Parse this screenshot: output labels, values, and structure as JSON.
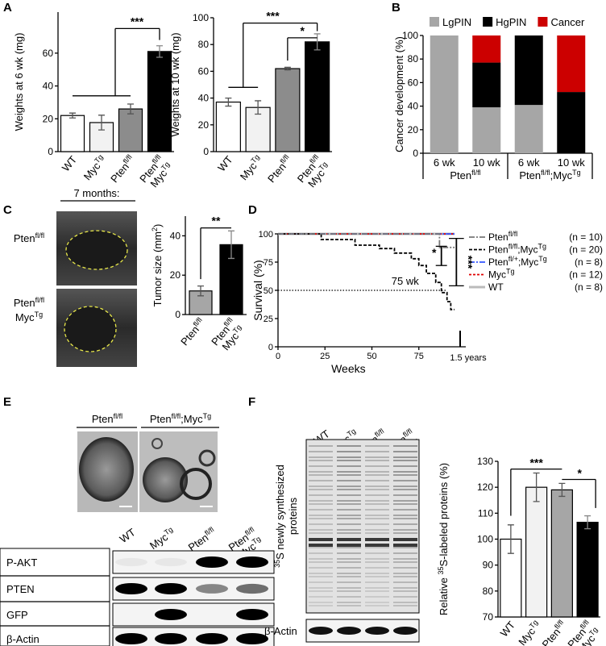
{
  "panels": [
    "A",
    "B",
    "C",
    "D",
    "E",
    "F"
  ],
  "chart_data": [
    {
      "type": "bar",
      "ylabel": [
        [
          "Weights at 6 wk (mg)"
        ]
      ],
      "categories": [
        [
          [
            "WT"
          ]
        ],
        [
          [
            "Myc",
            {
              "sup": "Tg"
            }
          ]
        ],
        [
          [
            "Pten",
            {
              "sup": "fl/fl"
            }
          ]
        ],
        [
          [
            "Pten",
            {
              "sup": "fl/fl"
            }
          ],
          [
            "Myc",
            {
              "sup": "Tg"
            }
          ]
        ]
      ],
      "values": [
        22,
        17.7,
        26,
        61
      ],
      "errors": [
        1.5,
        4.5,
        3,
        3.5
      ],
      "colors": [
        "#ffffff",
        "#f2f2f2",
        "#8c8c8c",
        "#000000"
      ],
      "ylim": [
        0,
        85
      ],
      "yticks": [
        0,
        20,
        40,
        60
      ],
      "annotations": [
        "***"
      ]
    },
    {
      "type": "bar",
      "ylabel": [
        [
          "Weights at 10 wk (mg)"
        ]
      ],
      "categories": [
        [
          [
            "WT"
          ]
        ],
        [
          [
            "Myc",
            {
              "sup": "Tg"
            }
          ]
        ],
        [
          [
            "Pten",
            {
              "sup": "fl/fl"
            }
          ]
        ],
        [
          [
            "Pten",
            {
              "sup": "fl/fl"
            }
          ],
          [
            "Myc",
            {
              "sup": "Tg"
            }
          ]
        ]
      ],
      "values": [
        37,
        33,
        62,
        82
      ],
      "errors": [
        3,
        5,
        1,
        6
      ],
      "colors": [
        "#ffffff",
        "#f2f2f2",
        "#8c8c8c",
        "#000000"
      ],
      "ylim": [
        0,
        100
      ],
      "yticks": [
        0,
        20,
        40,
        60,
        80,
        100
      ],
      "annotations": [
        "***",
        "*"
      ]
    },
    {
      "type": "stacked_bar",
      "ylabel": [
        [
          "Cancer development (%)"
        ]
      ],
      "categories": [
        "6 wk",
        "10 wk",
        "6 wk",
        "10 wk"
      ],
      "groups": [
        [
          [
            "Pten",
            {
              "sup": "fl/fl"
            }
          ]
        ],
        [
          [
            "Pten",
            {
              "sup": "fl/fl"
            },
            ";Myc",
            {
              "sup": "Tg"
            }
          ]
        ]
      ],
      "series": [
        {
          "name": "LgPIN",
          "color": "#a6a6a6",
          "values": [
            100,
            39,
            41,
            0
          ]
        },
        {
          "name": "HgPIN",
          "color": "#000000",
          "values": [
            0,
            38,
            59,
            52
          ]
        },
        {
          "name": "Cancer",
          "color": "#cc0000",
          "values": [
            0,
            23,
            0,
            48
          ]
        }
      ],
      "ylim": [
        0,
        100
      ],
      "yticks": [
        0,
        20,
        40,
        60,
        80,
        100
      ]
    },
    {
      "type": "bar",
      "ylabel": [
        [
          "Tumor size (mm",
          {
            "sup": "2"
          },
          ")"
        ]
      ],
      "categories": [
        [
          [
            "Pten",
            {
              "sup": "fl/fl"
            }
          ]
        ],
        [
          [
            "Pten",
            {
              "sup": "fl/fl"
            }
          ],
          [
            "Myc",
            {
              "sup": "Tg"
            }
          ]
        ]
      ],
      "values": [
        12,
        35.5
      ],
      "errors": [
        2.5,
        7
      ],
      "colors": [
        "#a6a6a6",
        "#000000"
      ],
      "ylim": [
        0,
        50
      ],
      "yticks": [
        0,
        20,
        40
      ],
      "annotations": [
        "**"
      ]
    },
    {
      "type": "line",
      "xlabel": "Weeks",
      "ylabel": "Survival (%)",
      "xlim": [
        0,
        100
      ],
      "xticks": [
        0,
        25,
        50,
        75
      ],
      "ylim": [
        0,
        100
      ],
      "yticks": [
        0,
        25,
        50,
        75,
        100
      ],
      "hline": 50,
      "vline": 97,
      "series": [
        {
          "name": [
            [
              "Pten",
              {
                "sup": "fl/fl"
              }
            ]
          ],
          "n": "(n = 10)",
          "color": "#777777",
          "dash": "dashdot",
          "x": [
            0,
            86,
            86,
            94
          ],
          "values": [
            100,
            100,
            88,
            88
          ]
        },
        {
          "name": [
            [
              "Pten",
              {
                "sup": "fl/fl"
              },
              ";Myc",
              {
                "sup": "Tg"
              }
            ]
          ],
          "n": "(n = 20)",
          "color": "#000000",
          "dash": "dashed",
          "x": [
            0,
            23,
            23,
            41,
            41,
            54,
            54,
            62,
            62,
            71,
            71,
            75,
            75,
            79,
            79,
            84,
            84,
            87,
            87,
            90,
            90,
            92,
            92,
            94
          ],
          "values": [
            100,
            100,
            95,
            95,
            90,
            90,
            87,
            87,
            83,
            83,
            78,
            78,
            72,
            72,
            65,
            65,
            57,
            57,
            48,
            48,
            40,
            40,
            33,
            33
          ]
        },
        {
          "name": [
            [
              "Pten",
              {
                "sup": "fl/+"
              },
              ";Myc",
              {
                "sup": "Tg"
              }
            ]
          ],
          "n": "(n = 8)",
          "color": "#3355ff",
          "dash": "dashdot",
          "x": [
            0,
            94
          ],
          "values": [
            100,
            100
          ]
        },
        {
          "name": [
            [
              "Myc",
              {
                "sup": "Tg"
              }
            ]
          ],
          "n": "(n = 12)",
          "color": "#e00000",
          "dash": "dotted",
          "x": [
            0,
            94
          ],
          "values": [
            100,
            100
          ]
        },
        {
          "name": [
            [
              "WT"
            ]
          ],
          "n": "(n = 8)",
          "color": "#bbbbbb",
          "dash": "solid",
          "x": [
            0,
            94
          ],
          "values": [
            100,
            100
          ]
        }
      ],
      "annotations": [
        "75 wk",
        "1.5 years",
        "*",
        "***"
      ]
    },
    {
      "type": "bar",
      "ylabel": [
        [
          "Relative ",
          {
            "sup": "35"
          },
          "S-labeled proteins (%)"
        ]
      ],
      "categories": [
        [
          [
            "WT"
          ]
        ],
        [
          [
            "Myc",
            {
              "sup": "Tg"
            }
          ]
        ],
        [
          [
            "Pten",
            {
              "sup": "fl/fl"
            }
          ]
        ],
        [
          [
            "Pten",
            {
              "sup": "fl/fl"
            }
          ],
          [
            "Myc",
            {
              "sup": "Tg"
            }
          ]
        ]
      ],
      "values": [
        100,
        120,
        119,
        106.5
      ],
      "errors": [
        5.5,
        5.5,
        2.5,
        2.5
      ],
      "colors": [
        "#ffffff",
        "#f2f2f2",
        "#a6a6a6",
        "#000000"
      ],
      "ylim": [
        70,
        130
      ],
      "yticks": [
        70,
        80,
        90,
        100,
        110,
        120,
        130
      ],
      "annotations": [
        "***",
        "*"
      ]
    }
  ],
  "panel_c": {
    "title": "7 months:",
    "rows": [
      [
        [
          "Pten",
          {
            "sup": "fl/fl"
          }
        ]
      ],
      [
        [
          "Pten",
          {
            "sup": "fl/fl"
          }
        ],
        [
          "Myc",
          {
            "sup": "Tg"
          }
        ]
      ]
    ]
  },
  "panel_e": {
    "groups": [
      [
        [
          "Pten",
          {
            "sup": "fl/fl"
          }
        ]
      ],
      [
        [
          "Pten",
          {
            "sup": "fl/fl"
          },
          ";Myc",
          {
            "sup": "Tg"
          }
        ]
      ]
    ],
    "lanes": [
      [
        [
          "WT"
        ]
      ],
      [
        [
          "Myc",
          {
            "sup": "Tg"
          }
        ]
      ],
      [
        [
          "Pten",
          {
            "sup": "fl/fl"
          }
        ]
      ],
      [
        [
          "Pten",
          {
            "sup": "fl/fl"
          }
        ],
        [
          "Myc",
          {
            "sup": "Tg"
          }
        ]
      ]
    ],
    "rows": [
      "P-AKT",
      "PTEN",
      "GFP",
      "β-Actin"
    ]
  },
  "panel_f": {
    "label": [
      [
        {
          "sup": "35"
        },
        "S newly synthesized"
      ],
      [
        "proteins"
      ]
    ],
    "lanes": [
      [
        [
          "WT"
        ]
      ],
      [
        [
          "Myc",
          {
            "sup": "Tg"
          }
        ]
      ],
      [
        [
          "Pten",
          {
            "sup": "fl/fl"
          }
        ]
      ],
      [
        [
          "Pten",
          {
            "sup": "fl/fl"
          }
        ],
        [
          "Myc",
          {
            "sup": "Tg"
          }
        ]
      ]
    ],
    "row": "β-Actin"
  }
}
